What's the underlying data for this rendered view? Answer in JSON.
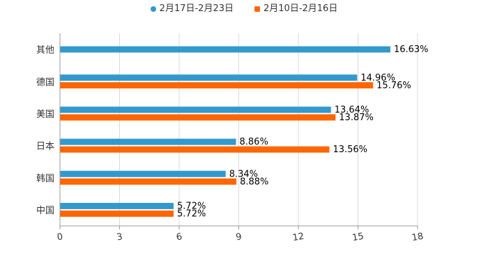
{
  "colors": {
    "series_a": "#3399CC",
    "series_b": "#FF6600"
  },
  "chart_data": {
    "type": "bar",
    "orientation": "horizontal",
    "categories": [
      "其他",
      "德国",
      "美国",
      "日本",
      "韩国",
      "中国"
    ],
    "series": [
      {
        "name": "2月17日-2月23日",
        "values": [
          16.63,
          14.96,
          13.64,
          8.86,
          8.34,
          5.72
        ],
        "labels": [
          "16.63%",
          "14.96%",
          "13.64%",
          "8.86%",
          "8.34%",
          "5.72%"
        ]
      },
      {
        "name": "2月10日-2月16日",
        "values": [
          null,
          15.76,
          13.87,
          13.56,
          8.88,
          5.72
        ],
        "labels": [
          null,
          "15.76%",
          "13.87%",
          "13.56%",
          "8.88%",
          "5.72%"
        ]
      }
    ],
    "x_ticks": [
      "0",
      "3",
      "6",
      "9",
      "12",
      "15",
      "18"
    ],
    "xlim": [
      0,
      18
    ],
    "grid": true,
    "legend_position": "top-center",
    "title": "",
    "xlabel": "",
    "ylabel": ""
  }
}
